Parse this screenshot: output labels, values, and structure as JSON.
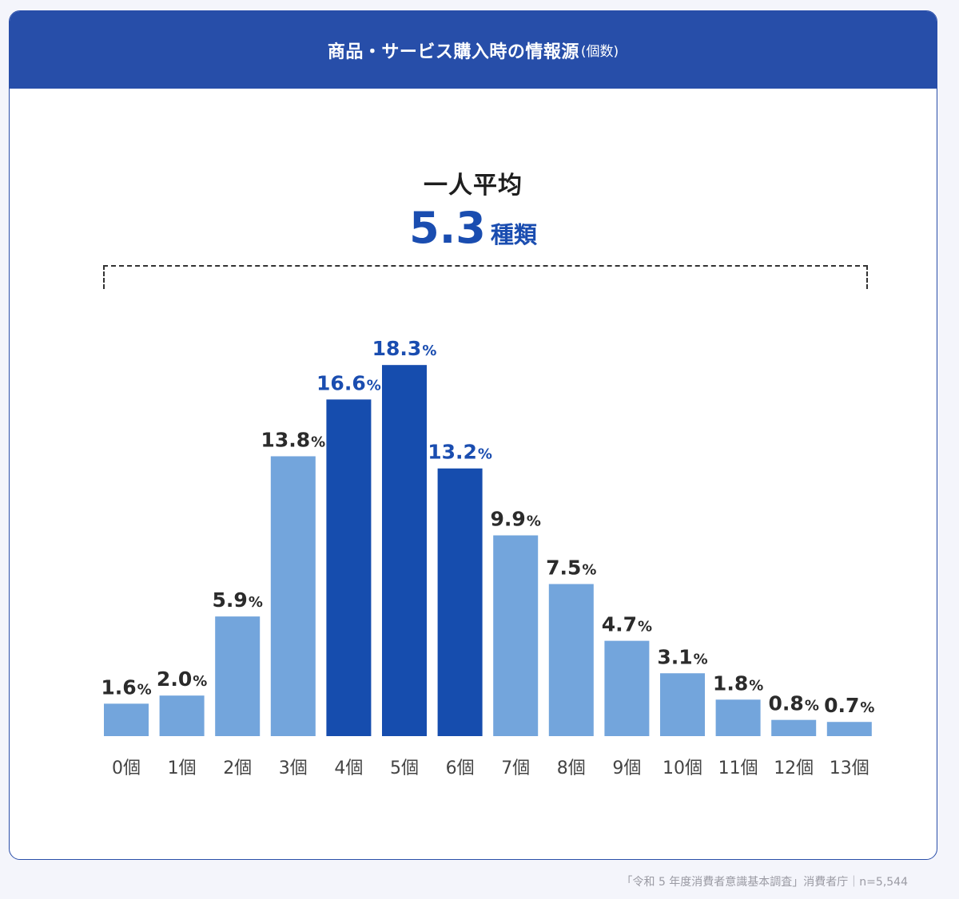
{
  "header": {
    "title": "商品・サービス購入時の情報源",
    "title_suffix": "(個数)"
  },
  "average": {
    "label": "一人平均",
    "value": "5.3",
    "unit": "種類"
  },
  "source": "「令和 5 年度消費者意識基本調査」消費者庁｜n=5,544",
  "colors": {
    "header_bg": "#274ea9",
    "bar_light": "#73a5dc",
    "bar_dark": "#164dae",
    "label_dark": "#2b2b2b",
    "label_highlight": "#1a4db0"
  },
  "chart_data": {
    "type": "bar",
    "categories": [
      "0個",
      "1個",
      "2個",
      "3個",
      "4個",
      "5個",
      "6個",
      "7個",
      "8個",
      "9個",
      "10個",
      "11個",
      "12個",
      "13個"
    ],
    "values": [
      1.6,
      2.0,
      5.9,
      13.8,
      16.6,
      18.3,
      13.2,
      9.9,
      7.5,
      4.7,
      3.1,
      1.8,
      0.8,
      0.7
    ],
    "value_labels": [
      "1.6",
      "2.0",
      "5.9",
      "13.8",
      "16.6",
      "18.3",
      "13.2",
      "9.9",
      "7.5",
      "4.7",
      "3.1",
      "1.8",
      "0.8",
      "0.7"
    ],
    "unit": "%",
    "highlighted_categories": [
      "4個",
      "5個",
      "6個"
    ],
    "ylim": [
      0,
      20
    ],
    "grid": false,
    "legend": "none"
  }
}
